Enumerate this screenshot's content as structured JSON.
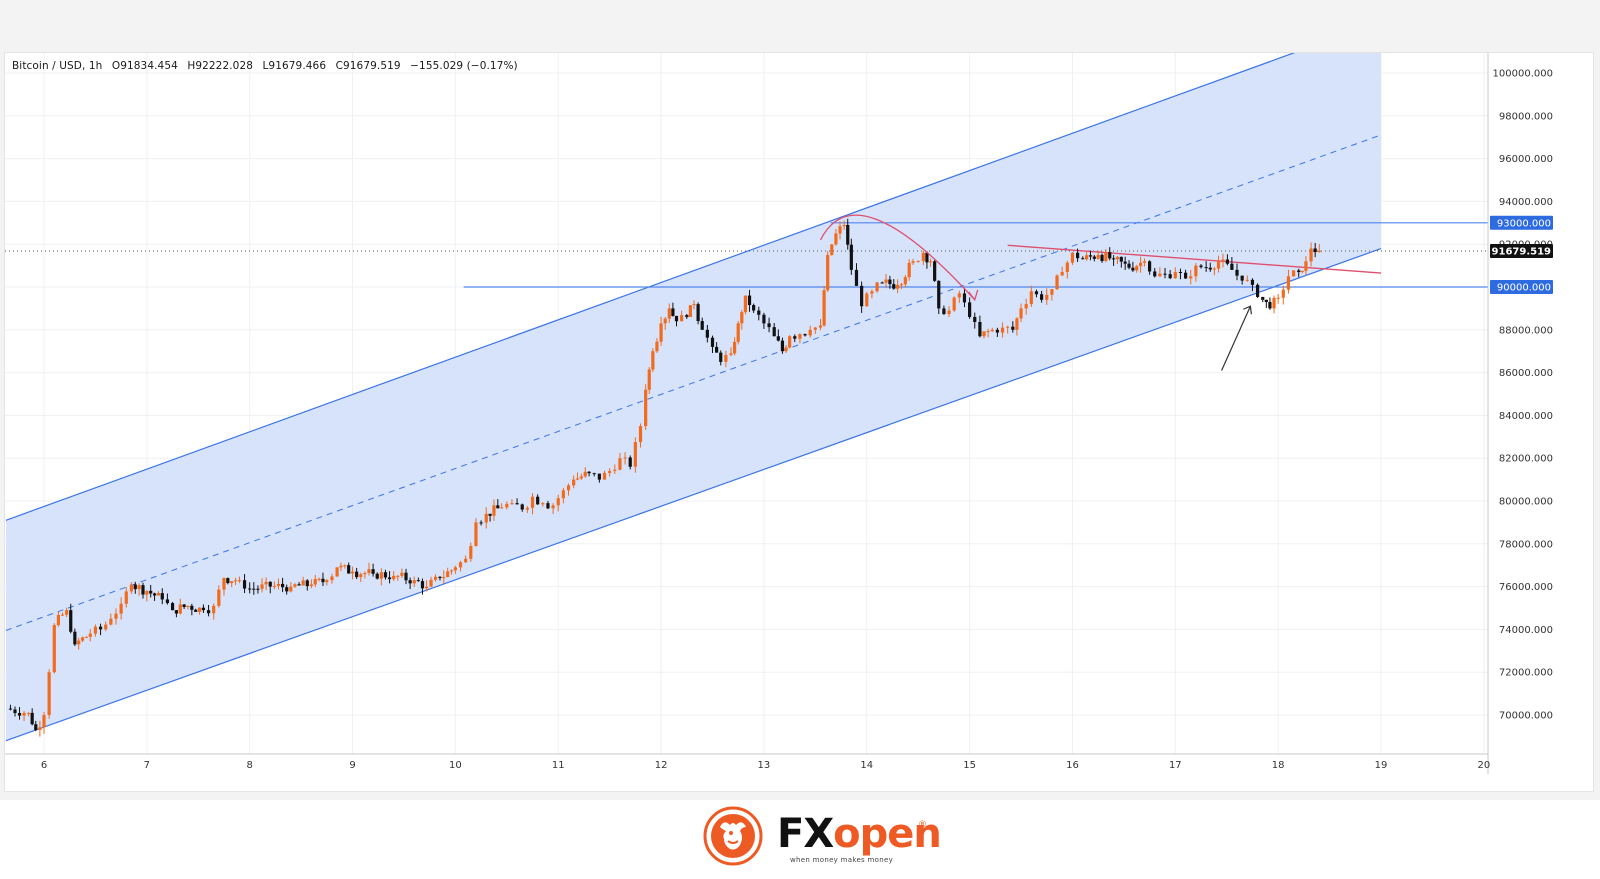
{
  "header": {
    "symbol": "Bitcoin / USD, 1h",
    "open": "O91834.454",
    "high": "H92222.028",
    "low": "L91679.466",
    "close": "C91679.519",
    "change": "−155.029 (−0.17%)"
  },
  "logo": {
    "fx": "FX",
    "open": "open",
    "registered": "®",
    "tagline": "when money makes money"
  },
  "colors": {
    "up": "#f26b1d",
    "down": "#111111",
    "channel_fill": "#d4e1fb",
    "channel_line": "#3b74e8",
    "level_line": "#4f86ec",
    "resistance_line": "#e04f6d",
    "annotation_arrow": "#e04f6d",
    "price_tag": "#111111",
    "level_tag": "#2f6be0"
  },
  "chart_data": {
    "type": "candlestick",
    "symbol": "Bitcoin / USD",
    "timeframe": "1h",
    "x_ticks": [
      "6",
      "7",
      "8",
      "9",
      "10",
      "11",
      "12",
      "13",
      "14",
      "15",
      "16",
      "17",
      "18",
      "19",
      "20"
    ],
    "y_ticks": [
      "70000.000",
      "72000.000",
      "74000.000",
      "76000.000",
      "78000.000",
      "80000.000",
      "82000.000",
      "84000.000",
      "86000.000",
      "88000.000",
      "90000.000",
      "92000.000",
      "94000.000",
      "96000.000",
      "98000.000",
      "100000.000"
    ],
    "ylim": [
      68200,
      101000
    ],
    "xlim": [
      5.63,
      20.05
    ],
    "last_price": "91679.519",
    "horizontal_levels": [
      {
        "label": "93000.000",
        "value": 93000,
        "from_day": 13.65
      },
      {
        "label": "90000.000",
        "value": 90000,
        "from_day": 10.08
      }
    ],
    "channel": {
      "upper": [
        [
          5.63,
          79100
        ],
        [
          13.6,
          93000
        ]
      ],
      "lower": [
        [
          5.63,
          68800
        ],
        [
          9.7,
          75800
        ]
      ],
      "midline_end_day": 19.0,
      "fill_end_day": 19.0
    },
    "resistance_line": [
      [
        15.37,
        91950
      ],
      [
        19.0,
        90650
      ]
    ],
    "price_path": [
      [
        5.63,
        70300
      ],
      [
        5.85,
        70100
      ],
      [
        5.92,
        69300
      ],
      [
        6.0,
        70000
      ],
      [
        6.05,
        72000
      ],
      [
        6.1,
        74200
      ],
      [
        6.22,
        74900
      ],
      [
        6.3,
        73300
      ],
      [
        6.45,
        73800
      ],
      [
        6.55,
        74000
      ],
      [
        6.65,
        74500
      ],
      [
        6.75,
        75200
      ],
      [
        6.85,
        76100
      ],
      [
        7.0,
        75800
      ],
      [
        7.15,
        75400
      ],
      [
        7.25,
        74900
      ],
      [
        7.4,
        75100
      ],
      [
        7.55,
        74900
      ],
      [
        7.65,
        75100
      ],
      [
        7.75,
        76400
      ],
      [
        7.9,
        76300
      ],
      [
        8.0,
        75900
      ],
      [
        8.2,
        76000
      ],
      [
        8.4,
        76000
      ],
      [
        8.6,
        76100
      ],
      [
        8.75,
        76300
      ],
      [
        8.85,
        76900
      ],
      [
        9.0,
        76700
      ],
      [
        9.2,
        76600
      ],
      [
        9.4,
        76500
      ],
      [
        9.6,
        76300
      ],
      [
        9.72,
        76000
      ],
      [
        9.85,
        76400
      ],
      [
        10.0,
        76900
      ],
      [
        10.1,
        77300
      ],
      [
        10.2,
        79000
      ],
      [
        10.3,
        79400
      ],
      [
        10.45,
        79700
      ],
      [
        10.55,
        79900
      ],
      [
        10.65,
        79600
      ],
      [
        10.75,
        80200
      ],
      [
        10.85,
        79900
      ],
      [
        10.95,
        79800
      ],
      [
        11.05,
        80500
      ],
      [
        11.15,
        81000
      ],
      [
        11.3,
        81300
      ],
      [
        11.4,
        81000
      ],
      [
        11.5,
        81400
      ],
      [
        11.6,
        82000
      ],
      [
        11.7,
        81600
      ],
      [
        11.8,
        83500
      ],
      [
        11.85,
        85200
      ],
      [
        11.92,
        87000
      ],
      [
        12.0,
        88300
      ],
      [
        12.08,
        89000
      ],
      [
        12.15,
        88400
      ],
      [
        12.25,
        88600
      ],
      [
        12.32,
        89200
      ],
      [
        12.4,
        88000
      ],
      [
        12.5,
        87200
      ],
      [
        12.58,
        86500
      ],
      [
        12.68,
        86900
      ],
      [
        12.75,
        88300
      ],
      [
        12.82,
        89600
      ],
      [
        12.9,
        88900
      ],
      [
        13.0,
        88300
      ],
      [
        13.1,
        87700
      ],
      [
        13.18,
        87000
      ],
      [
        13.25,
        87700
      ],
      [
        13.35,
        87800
      ],
      [
        13.45,
        88000
      ],
      [
        13.55,
        88200
      ],
      [
        13.62,
        91500
      ],
      [
        13.7,
        92500
      ],
      [
        13.78,
        92900
      ],
      [
        13.85,
        90800
      ],
      [
        13.95,
        89100
      ],
      [
        14.05,
        89800
      ],
      [
        14.15,
        90200
      ],
      [
        14.3,
        90100
      ],
      [
        14.45,
        91200
      ],
      [
        14.55,
        91600
      ],
      [
        14.62,
        91200
      ],
      [
        14.7,
        89000
      ],
      [
        14.8,
        88900
      ],
      [
        14.9,
        89700
      ],
      [
        15.0,
        88600
      ],
      [
        15.1,
        87700
      ],
      [
        15.22,
        88000
      ],
      [
        15.32,
        88100
      ],
      [
        15.42,
        88000
      ],
      [
        15.5,
        89000
      ],
      [
        15.6,
        89800
      ],
      [
        15.7,
        89400
      ],
      [
        15.8,
        89900
      ],
      [
        15.9,
        90700
      ],
      [
        16.0,
        91600
      ],
      [
        16.1,
        91300
      ],
      [
        16.25,
        91500
      ],
      [
        16.4,
        91300
      ],
      [
        16.55,
        90900
      ],
      [
        16.7,
        91200
      ],
      [
        16.8,
        90500
      ],
      [
        16.9,
        90600
      ],
      [
        17.0,
        90700
      ],
      [
        17.1,
        90400
      ],
      [
        17.2,
        91000
      ],
      [
        17.3,
        90900
      ],
      [
        17.42,
        91200
      ],
      [
        17.55,
        90800
      ],
      [
        17.65,
        90300
      ],
      [
        17.75,
        90100
      ],
      [
        17.85,
        89400
      ],
      [
        17.92,
        89000
      ],
      [
        18.0,
        89500
      ],
      [
        18.1,
        90500
      ],
      [
        18.2,
        90700
      ],
      [
        18.27,
        91200
      ],
      [
        18.32,
        91800
      ],
      [
        18.4,
        91700
      ]
    ]
  }
}
